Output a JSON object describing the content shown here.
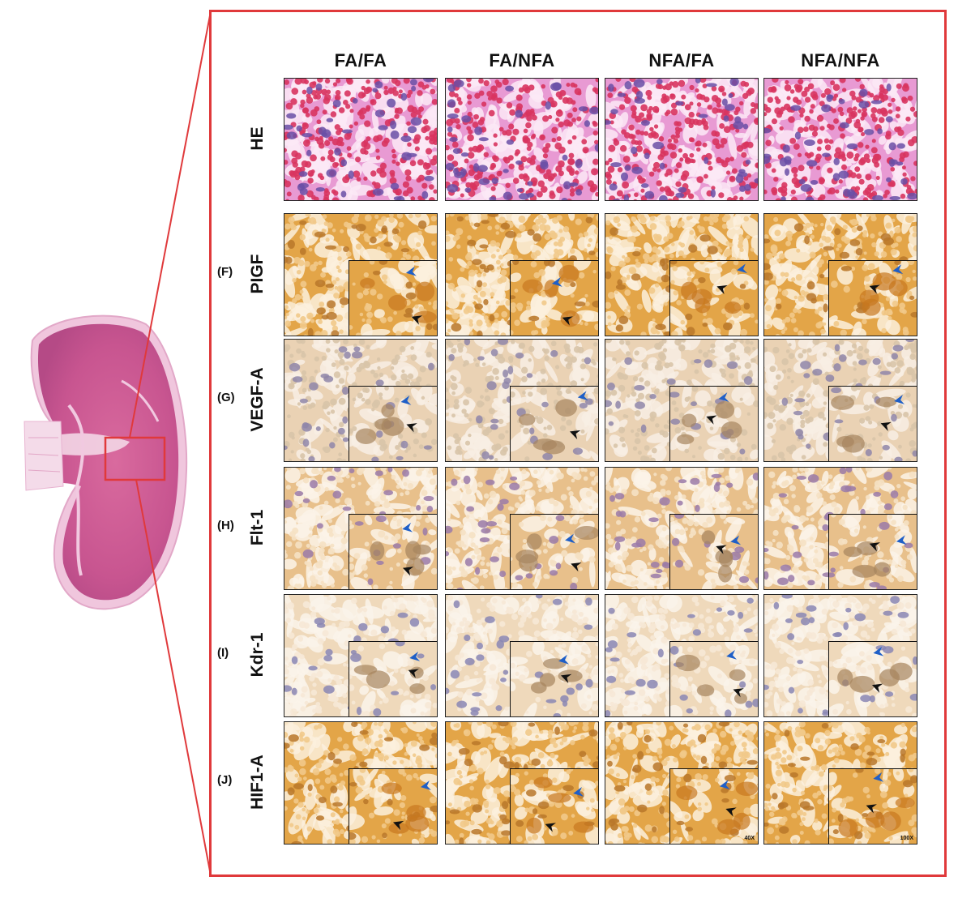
{
  "columns": [
    "FA/FA",
    "FA/NFA",
    "NFA/FA",
    "NFA/NFA"
  ],
  "rows": [
    {
      "label": "HE",
      "letter": "",
      "stain": "he"
    },
    {
      "label": "PIGF",
      "letter": "(F)",
      "stain": "ihc-strong"
    },
    {
      "label": "VEGF-A",
      "letter": "(G)",
      "stain": "ihc-light"
    },
    {
      "label": "Flt-1",
      "letter": "(H)",
      "stain": "ihc-medium"
    },
    {
      "label": "Kdr-1",
      "letter": "(I)",
      "stain": "ihc-pale"
    },
    {
      "label": "HIF1-A",
      "letter": "(J)",
      "stain": "ihc-strong"
    }
  ],
  "magnifications": {
    "low": "40X",
    "high": "100X"
  },
  "colors": {
    "frame": "#e0393b",
    "he_background": "#e89ad3",
    "he_cells": "#d8345f",
    "he_nuclei": "#6a4fa6",
    "ihc_strong": "#e3a548",
    "ihc_light": "#ead2b4",
    "arrow_black": "#111111",
    "arrow_blue": "#1f5fc7"
  },
  "icons": [
    "black-arrowhead-icon",
    "blue-arrowhead-icon"
  ]
}
